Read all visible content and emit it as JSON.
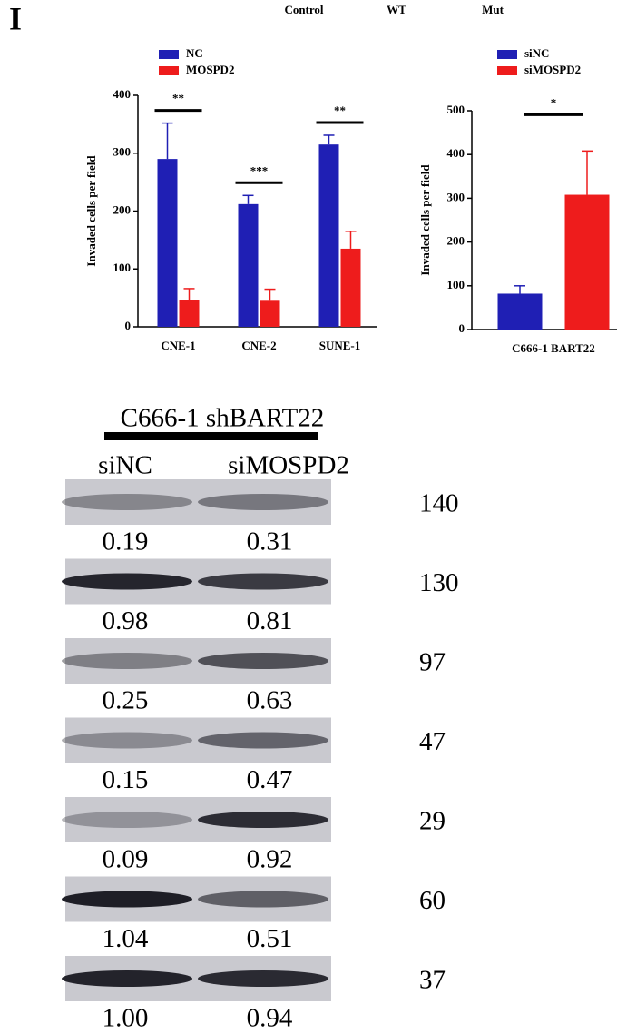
{
  "panel_label": "I",
  "header_labels": [
    "Control",
    "WT",
    "Mut"
  ],
  "chart_data": [
    {
      "type": "bar",
      "ylabel": "Invaded cells per field",
      "categories": [
        "CNE-1",
        "CNE-2",
        "SUNE-1"
      ],
      "series": [
        {
          "name": "NC",
          "color": "#1f1fb4",
          "values": [
            290,
            212,
            315
          ],
          "errors": [
            62,
            15,
            16
          ]
        },
        {
          "name": "MOSPD2",
          "color": "#ee1c1c",
          "values": [
            46,
            45,
            135
          ],
          "errors": [
            20,
            20,
            30
          ]
        }
      ],
      "annotations": [
        "**",
        "***",
        "**"
      ],
      "ylim": [
        0,
        400
      ],
      "yticks": [
        0,
        100,
        200,
        300,
        400
      ]
    },
    {
      "type": "bar",
      "ylabel": "Invaded cells per field",
      "categories": [
        "C666-1 BART22"
      ],
      "series": [
        {
          "name": "siNC",
          "color": "#1f1fb4",
          "values": [
            82
          ],
          "errors": [
            18
          ]
        },
        {
          "name": "siMOSPD2",
          "color": "#ee1c1c",
          "values": [
            308
          ],
          "errors": [
            100
          ]
        }
      ],
      "annotations": [
        "*"
      ],
      "ylim": [
        0,
        500
      ],
      "yticks": [
        0,
        100,
        200,
        300,
        400,
        500
      ]
    }
  ],
  "blot": {
    "title": "C666-1 shBART22",
    "lanes": [
      "siNC",
      "siMOSPD2"
    ],
    "bands": [
      {
        "quant": [
          "0.19",
          "0.31"
        ],
        "marker": 140
      },
      {
        "quant": [
          "0.98",
          "0.81"
        ],
        "marker": 130
      },
      {
        "quant": [
          "0.25",
          "0.63"
        ],
        "marker": 97
      },
      {
        "quant": [
          "0.15",
          "0.47"
        ],
        "marker": 47
      },
      {
        "quant": [
          "0.09",
          "0.92"
        ],
        "marker": 29
      },
      {
        "quant": [
          "1.04",
          "0.51"
        ],
        "marker": 60
      },
      {
        "quant": [
          "1.00",
          "0.94"
        ],
        "marker": 37
      }
    ]
  }
}
